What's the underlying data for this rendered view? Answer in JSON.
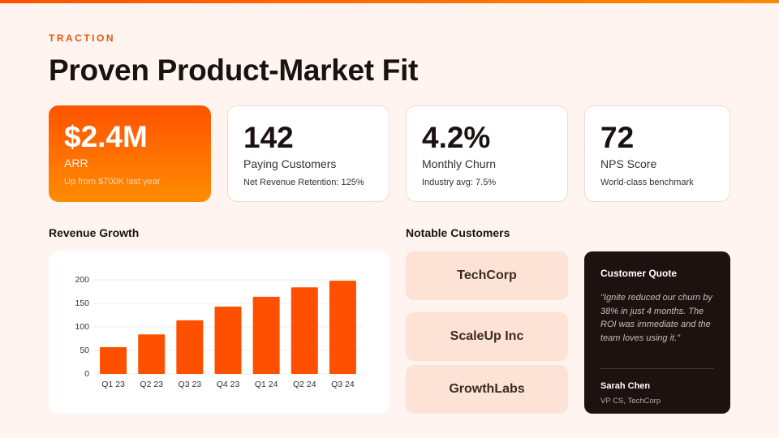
{
  "header": {
    "eyebrow": "TRACTION",
    "title": "Proven Product-Market Fit"
  },
  "metrics": [
    {
      "value": "$2.4M",
      "label": "ARR",
      "note": "Up from $700K last year"
    },
    {
      "value": "142",
      "label": "Paying Customers",
      "note": "Net Revenue Retention: 125%"
    },
    {
      "value": "4.2%",
      "label": "Monthly Churn",
      "note": "Industry avg: 7.5%"
    },
    {
      "value": "72",
      "label": "NPS Score",
      "note": "World-class benchmark"
    }
  ],
  "revenue": {
    "heading": "Revenue Growth"
  },
  "chart_data": {
    "type": "bar",
    "categories": [
      "Q1 23",
      "Q2 23",
      "Q3 23",
      "Q4 23",
      "Q1 24",
      "Q2 24",
      "Q3 24"
    ],
    "values": [
      57,
      84,
      114,
      143,
      164,
      184,
      198
    ],
    "color": "#ff5000",
    "ylim": [
      0,
      200
    ],
    "yticks": [
      0,
      50,
      100,
      150,
      200
    ],
    "grid": true
  },
  "customers": {
    "heading": "Notable Customers",
    "names": [
      "TechCorp",
      "ScaleUp Inc",
      "GrowthLabs"
    ]
  },
  "quote": {
    "heading": "Customer Quote",
    "text": "\"Ignite reduced our churn by 38% in just 4 months. The ROI was immediate and the team loves using it.\"",
    "author": "Sarah Chen",
    "role": "VP CS, TechCorp"
  }
}
